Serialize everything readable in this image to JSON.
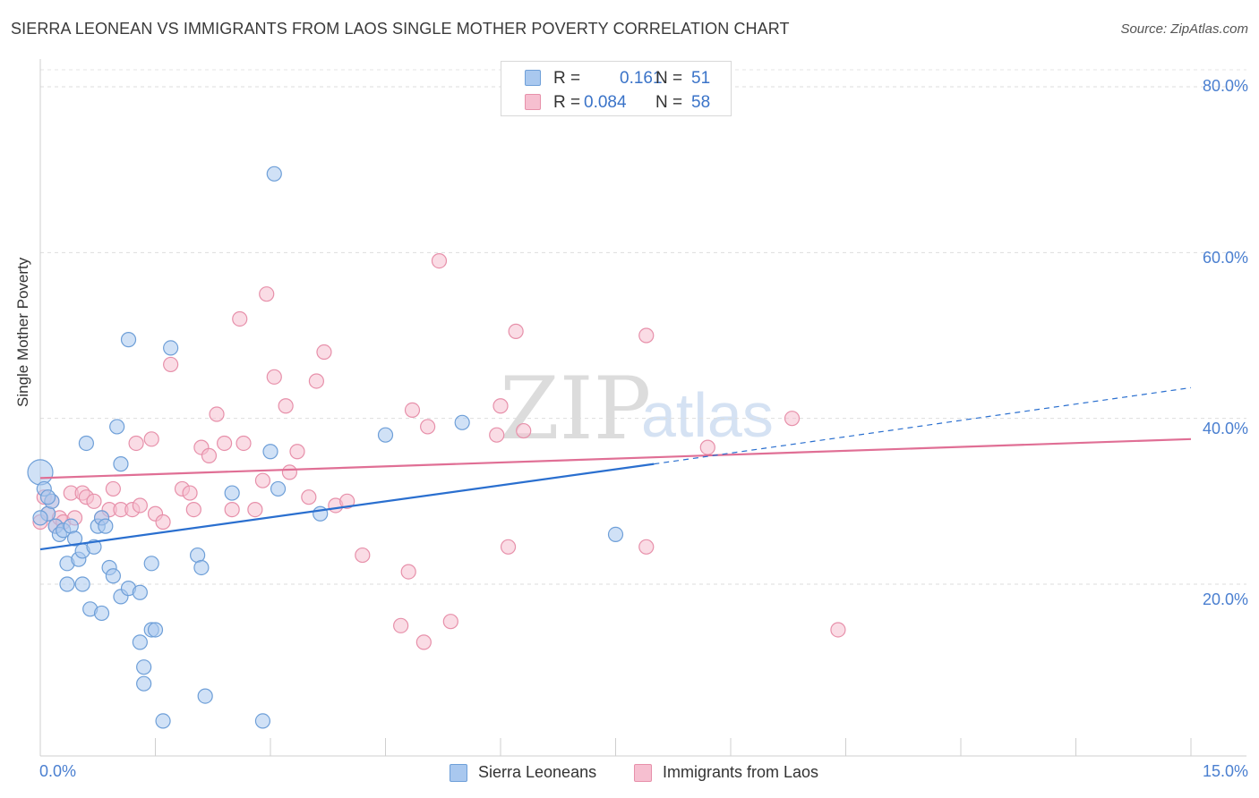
{
  "title": "SIERRA LEONEAN VS IMMIGRANTS FROM LAOS SINGLE MOTHER POVERTY CORRELATION CHART",
  "source": "Source: ZipAtlas.com",
  "watermark": {
    "zip": "ZIP",
    "atlas": "atlas"
  },
  "legend": {
    "rows": [
      {
        "r_label": "R =",
        "r_value": "0.161",
        "n_label": "N =",
        "n_value": "51"
      },
      {
        "r_label": "R =",
        "r_value": "0.084",
        "n_label": "N =",
        "n_value": "58"
      }
    ]
  },
  "bottom_legend": {
    "series1": "Sierra Leoneans",
    "series2": "Immigrants from Laos"
  },
  "axis": {
    "y_ticks": [
      "80.0%",
      "60.0%",
      "40.0%",
      "20.0%"
    ],
    "x_min_label": "0.0%",
    "x_max_label": "15.0%"
  },
  "chart_data": {
    "type": "scatter",
    "title": "SIERRA LEONEAN VS IMMIGRANTS FROM LAOS SINGLE MOTHER POVERTY CORRELATION CHART",
    "xlabel": "",
    "ylabel": "Single Mother Poverty",
    "xlim": [
      0,
      15
    ],
    "ylim": [
      0,
      83
    ],
    "colors": {
      "series1_fill": "#a9c8ef",
      "series1_stroke": "#6e9fd8",
      "series1_line": "#2a6fcf",
      "series2_fill": "#f6bfd0",
      "series2_stroke": "#e790aa",
      "series2_line": "#e06f95",
      "tick_text": "#4a7fd0"
    },
    "series": [
      {
        "name": "Sierra Leoneans",
        "r": 0.161,
        "n": 51,
        "trend": {
          "x0": 0,
          "y0": 24.2,
          "x1": 8.0,
          "y1": 34.5,
          "dash_to_x": 15,
          "dash_to_y": 43.7
        },
        "points": [
          [
            0.0,
            33.5
          ],
          [
            0.05,
            31.5
          ],
          [
            0.1,
            28.5
          ],
          [
            0.15,
            30.0
          ],
          [
            0.2,
            27.0
          ],
          [
            0.25,
            26.0
          ],
          [
            0.3,
            26.5
          ],
          [
            0.35,
            22.5
          ],
          [
            0.4,
            27.0
          ],
          [
            0.45,
            25.5
          ],
          [
            0.5,
            23.0
          ],
          [
            0.55,
            24.0
          ],
          [
            0.35,
            20.0
          ],
          [
            0.55,
            20.0
          ],
          [
            0.6,
            37.0
          ],
          [
            0.65,
            17.0
          ],
          [
            0.7,
            24.5
          ],
          [
            0.75,
            27.0
          ],
          [
            0.8,
            28.0
          ],
          [
            0.8,
            16.5
          ],
          [
            0.85,
            27.0
          ],
          [
            0.9,
            22.0
          ],
          [
            0.95,
            21.0
          ],
          [
            1.0,
            39.0
          ],
          [
            1.05,
            18.5
          ],
          [
            1.05,
            34.5
          ],
          [
            1.15,
            19.5
          ],
          [
            1.15,
            49.5
          ],
          [
            1.3,
            19.0
          ],
          [
            1.3,
            13.0
          ],
          [
            1.35,
            10.0
          ],
          [
            1.35,
            8.0
          ],
          [
            1.45,
            14.5
          ],
          [
            1.45,
            22.5
          ],
          [
            1.5,
            14.5
          ],
          [
            1.6,
            3.5
          ],
          [
            1.7,
            48.5
          ],
          [
            2.05,
            23.5
          ],
          [
            2.1,
            22.0
          ],
          [
            2.15,
            6.5
          ],
          [
            2.5,
            31.0
          ],
          [
            2.9,
            3.5
          ],
          [
            3.0,
            36.0
          ],
          [
            3.05,
            69.5
          ],
          [
            3.1,
            31.5
          ],
          [
            3.65,
            28.5
          ],
          [
            4.5,
            38.0
          ],
          [
            5.5,
            39.5
          ],
          [
            7.5,
            26.0
          ],
          [
            0.0,
            28.0
          ],
          [
            0.1,
            30.5
          ]
        ]
      },
      {
        "name": "Immigrants from Laos",
        "r": 0.084,
        "n": 58,
        "trend": {
          "x0": 0,
          "y0": 32.8,
          "x1": 15,
          "y1": 37.5
        },
        "points": [
          [
            0.0,
            27.5
          ],
          [
            0.05,
            30.5
          ],
          [
            0.1,
            28.5
          ],
          [
            0.15,
            30.0
          ],
          [
            0.2,
            27.0
          ],
          [
            0.25,
            28.0
          ],
          [
            0.3,
            27.5
          ],
          [
            0.4,
            31.0
          ],
          [
            0.45,
            28.0
          ],
          [
            0.55,
            31.0
          ],
          [
            0.6,
            30.5
          ],
          [
            0.7,
            30.0
          ],
          [
            0.8,
            28.0
          ],
          [
            0.9,
            29.0
          ],
          [
            0.95,
            31.5
          ],
          [
            1.05,
            29.0
          ],
          [
            1.2,
            29.0
          ],
          [
            1.25,
            37.0
          ],
          [
            1.3,
            29.5
          ],
          [
            1.45,
            37.5
          ],
          [
            1.5,
            28.5
          ],
          [
            1.6,
            27.5
          ],
          [
            1.7,
            46.5
          ],
          [
            1.85,
            31.5
          ],
          [
            1.95,
            31.0
          ],
          [
            2.0,
            29.0
          ],
          [
            2.1,
            36.5
          ],
          [
            2.2,
            35.5
          ],
          [
            2.3,
            40.5
          ],
          [
            2.4,
            37.0
          ],
          [
            2.5,
            29.0
          ],
          [
            2.6,
            52.0
          ],
          [
            2.65,
            37.0
          ],
          [
            2.8,
            29.0
          ],
          [
            2.9,
            32.5
          ],
          [
            2.95,
            55.0
          ],
          [
            3.05,
            45.0
          ],
          [
            3.2,
            41.5
          ],
          [
            3.25,
            33.5
          ],
          [
            3.35,
            36.0
          ],
          [
            3.5,
            30.5
          ],
          [
            3.6,
            44.5
          ],
          [
            3.7,
            48.0
          ],
          [
            3.85,
            29.5
          ],
          [
            4.0,
            30.0
          ],
          [
            4.2,
            23.5
          ],
          [
            4.7,
            15.0
          ],
          [
            4.8,
            21.5
          ],
          [
            4.85,
            41.0
          ],
          [
            5.0,
            13.0
          ],
          [
            5.05,
            39.0
          ],
          [
            5.2,
            59.0
          ],
          [
            5.35,
            15.5
          ],
          [
            5.95,
            38.0
          ],
          [
            6.1,
            24.5
          ],
          [
            6.2,
            50.5
          ],
          [
            6.3,
            38.5
          ],
          [
            7.9,
            24.5
          ]
        ]
      }
    ],
    "extra_points_series2": [
      [
        7.9,
        50.0
      ],
      [
        8.7,
        36.5
      ],
      [
        9.8,
        40.0
      ],
      [
        10.4,
        14.5
      ],
      [
        6.0,
        41.5
      ]
    ],
    "grid": true,
    "y_tick_values": [
      80,
      60,
      40,
      20
    ],
    "x_tick_values": [
      0,
      1.5,
      3,
      4.5,
      6,
      7.5,
      9,
      10.5,
      12,
      13.5,
      15
    ]
  }
}
